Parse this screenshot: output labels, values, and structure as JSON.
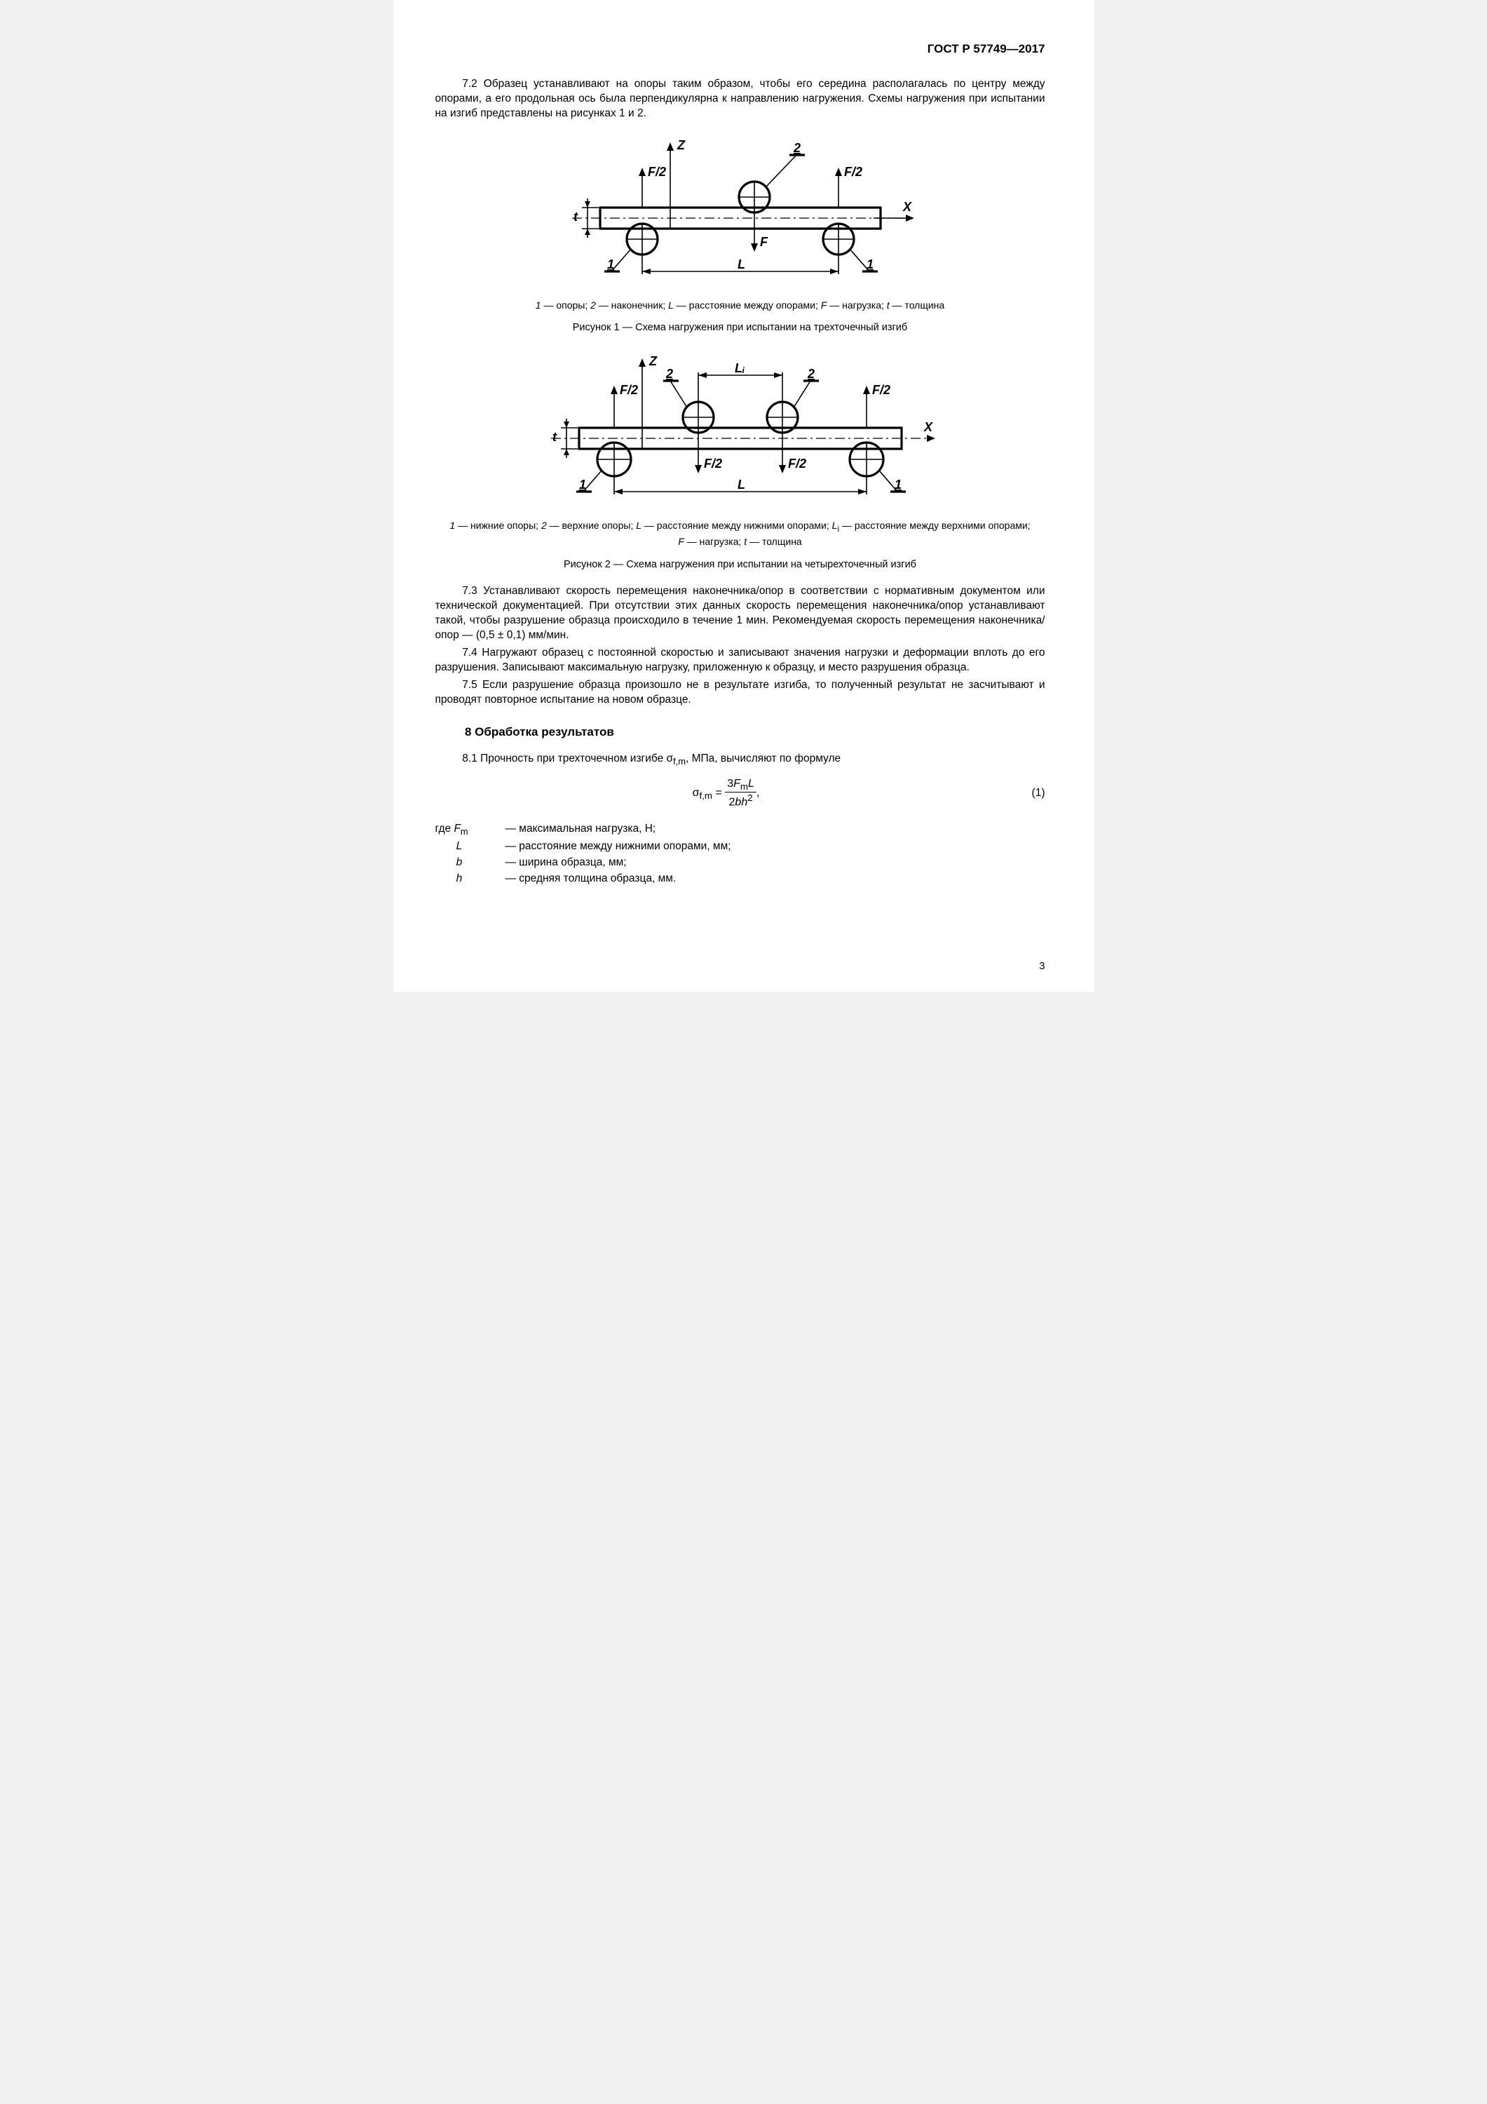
{
  "doc_id": "ГОСТ Р 57749—2017",
  "p72": "7.2  Образец устанавливают на опоры таким образом, чтобы его середина располагалась по центру между опорами, а его продольная ось была перпендикулярна к направлению нагружения. Схемы нагружения при испытании на изгиб представлены на рисунках 1 и 2.",
  "fig1": {
    "legend_html": "<i>1</i> — опоры; <i>2</i> — наконечник; <i>L</i> — расстояние между опорами; <i>F</i> — нагрузка; <i>t</i> — толщина",
    "caption": "Рисунок  1 — Схема нагружения при испытании на трехточечный изгиб",
    "labels": {
      "z": "Z",
      "x": "X",
      "F": "F",
      "F2": "F/2",
      "L": "L",
      "one": "1",
      "two": "2",
      "t": "t"
    }
  },
  "fig2": {
    "legend_html": "<i>1</i> — нижние опоры; <i>2</i> — верхние опоры; <i>L</i> — расстояние между нижними опорами; <i>L</i><sub>i</sub> — расстояние между верхними опорами;<br><i>F</i> — нагрузка; <i>t</i> — толщина",
    "caption": "Рисунок  2 — Схема нагружения при испытании на четырехточечный изгиб",
    "labels": {
      "z": "Z",
      "x": "X",
      "F2": "F/2",
      "L": "L",
      "Li": "Lᵢ",
      "one": "1",
      "two": "2",
      "t": "t"
    }
  },
  "p73": "7.3  Устанавливают скорость перемещения наконечника/опор в соответствии с нормативным документом или технической документацией. При отсутствии этих данных скорость перемещения наконечника/опор устанавливают такой, чтобы разрушение образца происходило в течение 1 мин. Рекомендуемая скорость перемещения наконечника/опор — (0,5 ± 0,1) мм/мин.",
  "p74": "7.4  Нагружают образец с постоянной скоростью и записывают значения нагрузки и деформации вплоть до его разрушения. Записывают максимальную нагрузку, приложенную к образцу, и место разрушения образца.",
  "p75": "7.5  Если разрушение образца произошло не в результате изгиба, то полученный результат не засчитывают и проводят повторное испытание на новом образце.",
  "section8_title": "8  Обработка результатов",
  "p81_intro_html": "8.1  Прочность при трехточечном изгибе  σ<sub>f,m</sub>, МПа, вычисляют по формуле",
  "formula1": {
    "left": "σ",
    "left_sub": "f,m",
    "num_html": "3<i>F</i><sub>m</sub><i>L</i>",
    "den_html": "2<i>bh</i><sup>2</sup>",
    "num_label": "(1)"
  },
  "where": [
    {
      "sym_html": "где <i>F</i><sub>m</sub>",
      "txt": "— максимальная нагрузка, Н;"
    },
    {
      "sym_html": "&nbsp;&nbsp;&nbsp;&nbsp;&nbsp;&nbsp;&nbsp;<i>L</i>",
      "txt": "— расстояние между нижними опорами, мм;"
    },
    {
      "sym_html": "&nbsp;&nbsp;&nbsp;&nbsp;&nbsp;&nbsp;&nbsp;<i>b</i>",
      "txt": "— ширина образца, мм;"
    },
    {
      "sym_html": "&nbsp;&nbsp;&nbsp;&nbsp;&nbsp;&nbsp;&nbsp;<i>h</i>",
      "txt": "— средняя толщина образца, мм."
    }
  ],
  "page_number": "3"
}
